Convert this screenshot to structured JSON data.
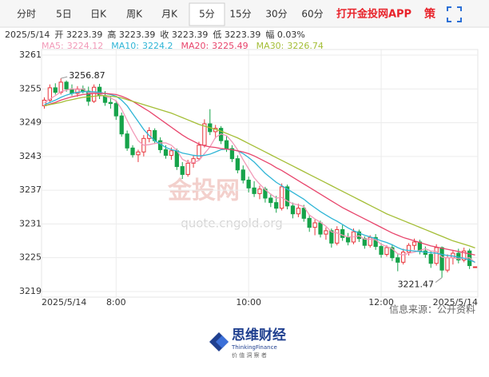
{
  "tabs": [
    "分时",
    "5日",
    "日K",
    "周K",
    "月K",
    "5分",
    "15分",
    "30分",
    "60分"
  ],
  "app_link": "打开金投网APP",
  "strategy": "策",
  "info": [
    "2025/5/14",
    "开 3223.39",
    "高 3223.39",
    "收 3223.39",
    "低 3223.39",
    "幅 0.03%"
  ],
  "watermark": [
    "金投网",
    "quote.cngold.org"
  ],
  "source": "信息来源：公开资料",
  "logo": {
    "name": "思维财经",
    "english": "ThinkingFinance",
    "slogan": "价 值 洞 察 者"
  },
  "chart_data": {
    "type": "candlestick",
    "categories": [
      "2025/5/14",
      null,
      null,
      null,
      null,
      null,
      null,
      null,
      null,
      null,
      null,
      null,
      null,
      "8:00",
      null,
      null,
      null,
      null,
      null,
      null,
      null,
      null,
      null,
      null,
      null,
      null,
      null,
      null,
      null,
      null,
      null,
      null,
      null,
      null,
      null,
      null,
      null,
      "10:00",
      null,
      null,
      null,
      null,
      null,
      null,
      null,
      null,
      null,
      null,
      null,
      null,
      null,
      null,
      null,
      null,
      null,
      null,
      null,
      null,
      null,
      null,
      null,
      "12:00",
      null,
      null,
      null,
      null,
      null,
      null,
      null,
      null,
      null,
      null,
      null,
      null,
      null,
      null,
      null,
      null,
      "2025/5/14"
    ],
    "open": [
      3252.0,
      3253.0,
      3255.2,
      3254.4,
      3256.2,
      3255.0,
      3254.2,
      3255.0,
      3254.6,
      3252.8,
      3255.3,
      3253.8,
      3252.6,
      3252.4,
      3250.2,
      3247.0,
      3244.5,
      3243.3,
      3243.8,
      3246.2,
      3247.6,
      3245.8,
      3244.2,
      3243.2,
      3244.0,
      3241.2,
      3239.8,
      3241.8,
      3242.6,
      3245.0,
      3248.8,
      3247.4,
      3248.0,
      3245.8,
      3244.4,
      3242.6,
      3240.6,
      3238.8,
      3237.4,
      3236.4,
      3237.2,
      3235.6,
      3234.8,
      3233.8,
      3237.6,
      3234.2,
      3232.8,
      3233.8,
      3232.0,
      3230.4,
      3231.2,
      3229.2,
      3229.8,
      3227.6,
      3230.0,
      3228.6,
      3227.8,
      3229.6,
      3228.4,
      3227.2,
      3228.6,
      3227.0,
      3225.6,
      3226.8,
      3225.0,
      3224.2,
      3226.0,
      3227.2,
      3227.8,
      3226.2,
      3225.6,
      3224.0,
      3226.8,
      3222.8,
      3225.0,
      3225.8,
      3224.6,
      3226.2,
      3223.39
    ],
    "high": [
      3253.5,
      3255.8,
      3256.0,
      3256.87,
      3256.5,
      3255.8,
      3255.5,
      3255.6,
      3255.4,
      3255.8,
      3255.9,
      3254.6,
      3253.6,
      3253.0,
      3250.8,
      3247.6,
      3245.0,
      3244.2,
      3246.8,
      3248.2,
      3248.0,
      3246.4,
      3245.0,
      3244.6,
      3244.4,
      3242.0,
      3242.4,
      3243.2,
      3245.6,
      3249.6,
      3251.4,
      3248.6,
      3248.4,
      3246.6,
      3245.0,
      3243.2,
      3241.4,
      3239.4,
      3238.6,
      3237.8,
      3237.6,
      3236.4,
      3236.0,
      3238.2,
      3238.0,
      3234.8,
      3234.6,
      3234.4,
      3232.6,
      3231.8,
      3231.6,
      3230.4,
      3230.2,
      3230.6,
      3230.8,
      3229.4,
      3230.2,
      3230.0,
      3228.8,
      3229.0,
      3229.2,
      3227.6,
      3227.2,
      3227.4,
      3225.6,
      3226.6,
      3227.6,
      3228.4,
      3228.2,
      3227.0,
      3226.2,
      3227.4,
      3227.0,
      3225.6,
      3226.4,
      3226.6,
      3226.8,
      3226.6,
      3223.39
    ],
    "low": [
      3251.5,
      3252.6,
      3254.0,
      3254.0,
      3254.5,
      3253.8,
      3253.6,
      3254.2,
      3252.0,
      3252.5,
      3253.2,
      3252.0,
      3251.5,
      3249.5,
      3246.5,
      3244.0,
      3242.8,
      3242.0,
      3243.0,
      3245.5,
      3245.2,
      3243.6,
      3242.6,
      3242.4,
      3240.6,
      3239.0,
      3239.4,
      3241.0,
      3242.2,
      3244.6,
      3246.8,
      3246.2,
      3245.2,
      3243.8,
      3242.0,
      3240.0,
      3238.2,
      3236.6,
      3235.8,
      3235.4,
      3234.8,
      3234.0,
      3233.0,
      3233.4,
      3233.6,
      3232.0,
      3232.2,
      3231.4,
      3229.6,
      3229.0,
      3228.6,
      3228.2,
      3226.8,
      3227.2,
      3228.0,
      3227.2,
      3227.4,
      3227.8,
      3226.6,
      3226.8,
      3226.4,
      3225.0,
      3225.2,
      3224.4,
      3222.6,
      3223.8,
      3225.4,
      3226.4,
      3225.6,
      3225.0,
      3223.2,
      3223.6,
      3221.47,
      3222.4,
      3223.8,
      3224.0,
      3224.2,
      3223.0,
      3223.39
    ],
    "close": [
      3253.0,
      3255.2,
      3254.4,
      3256.2,
      3255.0,
      3254.2,
      3255.0,
      3254.6,
      3252.8,
      3255.3,
      3253.8,
      3252.6,
      3252.4,
      3250.2,
      3247.0,
      3244.5,
      3243.3,
      3243.8,
      3246.2,
      3247.6,
      3245.8,
      3244.2,
      3243.2,
      3244.0,
      3241.2,
      3239.8,
      3241.8,
      3242.6,
      3245.0,
      3248.8,
      3247.4,
      3248.0,
      3245.8,
      3244.4,
      3242.6,
      3240.6,
      3238.8,
      3237.4,
      3236.4,
      3237.2,
      3235.6,
      3234.8,
      3233.8,
      3237.6,
      3234.2,
      3232.8,
      3233.8,
      3232.0,
      3230.4,
      3231.2,
      3229.2,
      3229.8,
      3227.6,
      3230.0,
      3228.6,
      3227.8,
      3229.6,
      3228.4,
      3227.2,
      3228.6,
      3227.0,
      3225.6,
      3226.8,
      3225.0,
      3224.2,
      3226.0,
      3227.2,
      3227.8,
      3226.2,
      3225.6,
      3224.0,
      3226.8,
      3222.8,
      3225.0,
      3225.8,
      3224.6,
      3226.2,
      3223.6,
      3223.39
    ],
    "up_color": "#e8353b",
    "down_color": "#16a34a",
    "series": [
      {
        "name": "MA5:",
        "color": "#f29ab8",
        "values": [
          3252.5,
          3253.2,
          3253.8,
          3254.5,
          3254.8,
          3255.0,
          3254.9,
          3255.0,
          3254.3,
          3254.4,
          3254.1,
          3253.7,
          3253.4,
          3252.9,
          3251.4,
          3249.4,
          3247.5,
          3245.8,
          3245.0,
          3245.1,
          3245.3,
          3245.4,
          3245.4,
          3245.0,
          3244.1,
          3242.5,
          3242.0,
          3241.9,
          3242.3,
          3243.5,
          3244.7,
          3246.4,
          3247.0,
          3246.7,
          3245.6,
          3244.2,
          3242.4,
          3240.8,
          3239.2,
          3238.1,
          3237.1,
          3236.3,
          3235.6,
          3235.7,
          3235.1,
          3234.6,
          3234.4,
          3234.1,
          3232.6,
          3231.9,
          3231.3,
          3230.6,
          3229.6,
          3229.4,
          3229.0,
          3228.7,
          3228.7,
          3228.9,
          3228.3,
          3228.3,
          3228.2,
          3227.4,
          3227.0,
          3226.6,
          3225.7,
          3225.5,
          3225.8,
          3226.0,
          3226.3,
          3226.6,
          3226.2,
          3226.1,
          3225.1,
          3225.0,
          3225.0,
          3224.8,
          3224.9,
          3225.0,
          3224.12
        ]
      },
      {
        "name": "MA10:",
        "color": "#2fb5d6",
        "values": [
          3252.2,
          3252.6,
          3253.0,
          3253.5,
          3253.9,
          3254.2,
          3254.4,
          3254.5,
          3254.5,
          3254.5,
          3254.4,
          3254.2,
          3254.0,
          3253.7,
          3253.0,
          3252.0,
          3250.6,
          3249.2,
          3247.8,
          3246.7,
          3245.8,
          3245.2,
          3244.6,
          3244.2,
          3244.0,
          3243.6,
          3243.4,
          3243.2,
          3243.1,
          3243.2,
          3243.4,
          3243.8,
          3244.2,
          3244.3,
          3244.2,
          3244.0,
          3243.5,
          3242.8,
          3242.0,
          3241.0,
          3240.0,
          3239.2,
          3238.4,
          3237.8,
          3237.2,
          3236.6,
          3236.0,
          3235.4,
          3234.6,
          3233.9,
          3233.2,
          3232.6,
          3232.0,
          3231.5,
          3230.9,
          3230.3,
          3229.8,
          3229.4,
          3229.0,
          3228.7,
          3228.4,
          3228.0,
          3227.7,
          3227.3,
          3226.8,
          3226.4,
          3226.3,
          3226.2,
          3226.1,
          3226.0,
          3225.9,
          3225.8,
          3225.6,
          3225.4,
          3225.3,
          3225.1,
          3224.9,
          3224.6,
          3224.2
        ]
      },
      {
        "name": "MA20:",
        "color": "#e8456c",
        "values": [
          3252.0,
          3252.3,
          3252.6,
          3253.0,
          3253.3,
          3253.6,
          3253.8,
          3254.0,
          3254.1,
          3254.2,
          3254.2,
          3254.2,
          3254.1,
          3254.0,
          3253.7,
          3253.3,
          3252.8,
          3252.2,
          3251.6,
          3251.0,
          3250.3,
          3249.6,
          3248.9,
          3248.2,
          3247.5,
          3246.8,
          3246.2,
          3245.7,
          3245.2,
          3244.9,
          3244.7,
          3244.6,
          3244.4,
          3244.3,
          3244.2,
          3244.0,
          3243.8,
          3243.5,
          3243.1,
          3242.6,
          3242.1,
          3241.6,
          3241.0,
          3240.5,
          3239.9,
          3239.3,
          3238.7,
          3238.1,
          3237.5,
          3236.9,
          3236.3,
          3235.7,
          3235.1,
          3234.5,
          3233.9,
          3233.4,
          3232.9,
          3232.4,
          3231.9,
          3231.4,
          3230.9,
          3230.4,
          3229.9,
          3229.4,
          3229.0,
          3228.6,
          3228.3,
          3228.0,
          3227.7,
          3227.4,
          3227.1,
          3226.9,
          3226.7,
          3226.5,
          3226.3,
          3226.1,
          3225.9,
          3225.7,
          3225.49
        ]
      },
      {
        "name": "MA30:",
        "color": "#a4be36",
        "values": [
          3252.0,
          3252.2,
          3252.4,
          3252.6,
          3252.9,
          3253.1,
          3253.3,
          3253.5,
          3253.6,
          3253.7,
          3253.8,
          3253.8,
          3253.7,
          3253.6,
          3253.4,
          3253.1,
          3252.8,
          3252.5,
          3252.2,
          3251.9,
          3251.6,
          3251.3,
          3251.0,
          3250.7,
          3250.3,
          3249.9,
          3249.5,
          3249.1,
          3248.7,
          3248.4,
          3248.1,
          3247.8,
          3247.5,
          3247.1,
          3246.7,
          3246.3,
          3245.8,
          3245.3,
          3244.8,
          3244.3,
          3243.8,
          3243.3,
          3242.8,
          3242.3,
          3241.8,
          3241.3,
          3240.8,
          3240.3,
          3239.8,
          3239.3,
          3238.8,
          3238.3,
          3237.8,
          3237.3,
          3236.8,
          3236.3,
          3235.8,
          3235.3,
          3234.8,
          3234.3,
          3233.8,
          3233.3,
          3232.8,
          3232.4,
          3232.0,
          3231.6,
          3231.2,
          3230.8,
          3230.4,
          3230.0,
          3229.6,
          3229.2,
          3228.8,
          3228.4,
          3228.0,
          3227.7,
          3227.4,
          3227.1,
          3226.74
        ]
      }
    ],
    "ylim": [
      3218,
      3262
    ],
    "yticks": [
      3219,
      3225,
      3231,
      3237,
      3243,
      3249,
      3255,
      3261
    ],
    "grid": true,
    "high_index": 3,
    "low_index": 72
  }
}
